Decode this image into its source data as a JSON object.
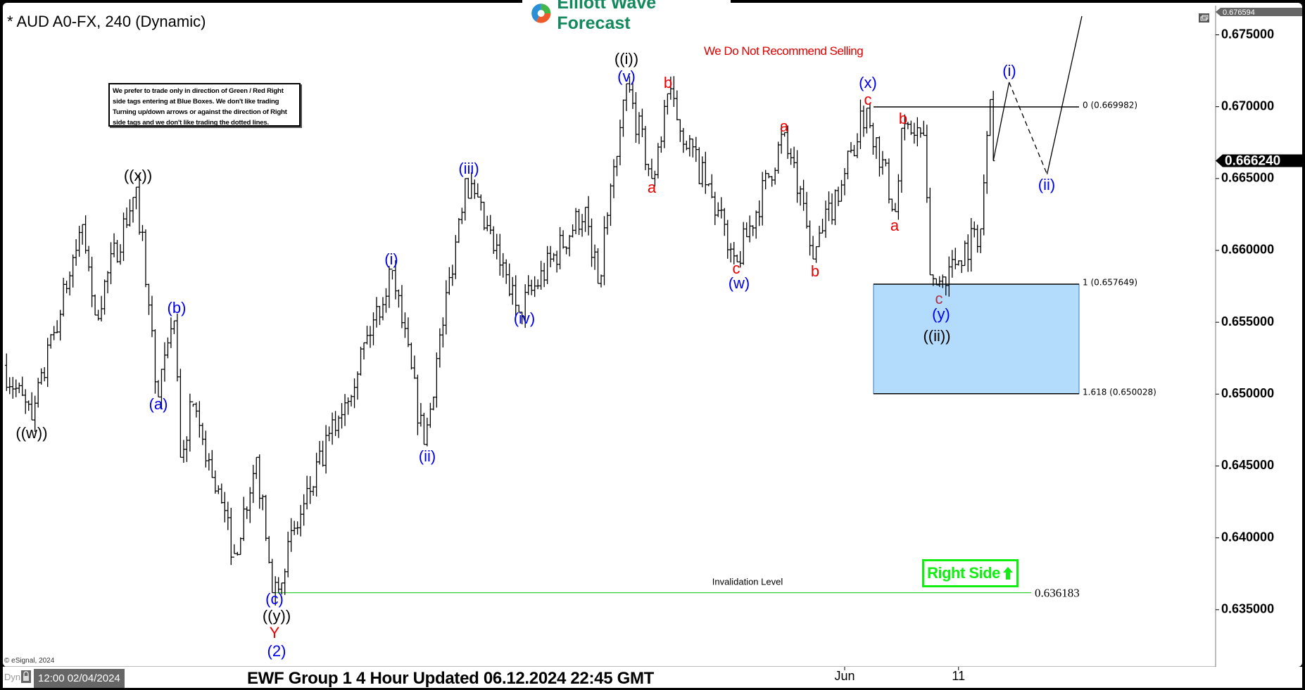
{
  "header": {
    "title": "* AUD A0-FX, 240 (Dynamic)",
    "logo_text": "Elliott Wave Forecast",
    "logo_icon": "ewf-swirl-logo",
    "restore_icon": "window-restore-icon",
    "warning": "We Do Not Recommend Selling",
    "note": "We prefer to trade only in direction of Green / Red Right side tags entering at Blue Boxes. We don't like trading Turning up/down arrows or against the direction of Right side tags and we don't like trading the dotted lines."
  },
  "chart_data": {
    "type": "ohlc",
    "symbol": "AUD A0-FX",
    "interval": "240",
    "ylim": [
      0.631,
      0.6766
    ],
    "y_ticks": [
      "0.675000",
      "0.670000",
      "0.665000",
      "0.660000",
      "0.655000",
      "0.650000",
      "0.645000",
      "0.640000",
      "0.635000"
    ],
    "x_ticks": [
      {
        "label": "Jun",
        "date": "2024-06-03 00:00"
      },
      {
        "label": "11",
        "date": "2024-06-11 00:00"
      }
    ],
    "grid": false,
    "top_price": "0.676594",
    "current_price": "0.666240",
    "price_path": [
      {
        "date": "2024-04-01 16:00",
        "price": 0.652
      },
      {
        "date": "2024-04-03 04:00",
        "price": 0.6482
      },
      {
        "date": "2024-04-05 20:00",
        "price": 0.6618
      },
      {
        "date": "2024-04-08 12:00",
        "price": 0.6555
      },
      {
        "date": "2024-04-10 16:00",
        "price": 0.6644
      },
      {
        "date": "2024-04-11 20:00",
        "price": 0.6498
      },
      {
        "date": "2024-04-12 16:00",
        "price": 0.6551
      },
      {
        "date": "2024-04-15 00:00",
        "price": 0.6456
      },
      {
        "date": "2024-04-15 16:00",
        "price": 0.6493
      },
      {
        "date": "2024-04-17 20:00",
        "price": 0.6389
      },
      {
        "date": "2024-04-19 00:00",
        "price": 0.6456
      },
      {
        "date": "2024-04-19 20:00",
        "price": 0.636183
      },
      {
        "date": "2024-04-30 04:00",
        "price": 0.6586
      },
      {
        "date": "2024-05-01 20:00",
        "price": 0.6465
      },
      {
        "date": "2024-05-06 00:00",
        "price": 0.665
      },
      {
        "date": "2024-05-08 20:00",
        "price": 0.6557
      },
      {
        "date": "2024-05-14 08:00",
        "price": 0.663
      },
      {
        "date": "2024-05-15 00:00",
        "price": 0.6577
      },
      {
        "date": "2024-05-16 12:00",
        "price": 0.6716
      },
      {
        "date": "2024-05-17 20:00",
        "price": 0.665
      },
      {
        "date": "2024-05-20 16:00",
        "price": 0.6709
      },
      {
        "date": "2024-05-24 08:00",
        "price": 0.6592
      },
      {
        "date": "2024-05-28 20:00",
        "price": 0.6682
      },
      {
        "date": "2024-05-30 08:00",
        "price": 0.6594
      },
      {
        "date": "2024-06-04 04:00",
        "price": 0.6699
      },
      {
        "date": "2024-06-05 16:00",
        "price": 0.6627
      },
      {
        "date": "2024-06-06 00:00",
        "price": 0.6685
      },
      {
        "date": "2024-06-07 04:00",
        "price": 0.668
      },
      {
        "date": "2024-06-07 12:00",
        "price": 0.6583
      },
      {
        "date": "2024-06-07 20:00",
        "price": 0.6576
      },
      {
        "date": "2024-06-12 04:00",
        "price": 0.6615
      },
      {
        "date": "2024-06-12 16:00",
        "price": 0.6705
      },
      {
        "date": "2024-06-12 20:00",
        "price": 0.66624
      }
    ],
    "projection": [
      {
        "date": "2024-06-12 20:00",
        "price": 0.66624,
        "style": "solid"
      },
      {
        "date": "2024-06-13 16:00",
        "price": 0.6717,
        "style": "dashed"
      },
      {
        "date": "2024-06-17 16:00",
        "price": 0.6653,
        "style": "solid"
      },
      {
        "date": "2024-06-19 12:00",
        "price": 0.6763
      }
    ],
    "fib_levels": [
      {
        "label": "0 (0.669982)",
        "value": 0.669982
      },
      {
        "label": "1 (0.657649)",
        "value": 0.657649
      },
      {
        "label": "1.618 (0.650028)",
        "value": 0.650028
      }
    ],
    "blue_box": {
      "from": 0.657649,
      "to": 0.650028,
      "color": "#b3dcfc"
    },
    "invalidation": {
      "label": "Invalidation Level",
      "value": 0.636183,
      "value_text": "0.636183",
      "color": "#33cc33"
    },
    "colors": {
      "black": "#000000",
      "blue": "#0000ee",
      "red": "#ee0000",
      "dark_red": "#b0304a",
      "green": "#11ee11"
    },
    "wave_labels": [
      {
        "text": "((w))",
        "color": "black"
      },
      {
        "text": "((x))",
        "color": "black"
      },
      {
        "text": "(a)",
        "color": "blue"
      },
      {
        "text": "(b)",
        "color": "blue"
      },
      {
        "text": "(c)",
        "color": "blue"
      },
      {
        "text": "((y))",
        "color": "black"
      },
      {
        "text": "Y",
        "color": "red"
      },
      {
        "text": "(2)",
        "color": "blue"
      },
      {
        "text": "(i)",
        "color": "blue"
      },
      {
        "text": "(ii)",
        "color": "blue"
      },
      {
        "text": "(iii)",
        "color": "blue"
      },
      {
        "text": "(iv)",
        "color": "blue"
      },
      {
        "text": "((i))",
        "color": "black"
      },
      {
        "text": "(v)",
        "color": "blue"
      },
      {
        "text": "b",
        "color": "red"
      },
      {
        "text": "a",
        "color": "red"
      },
      {
        "text": "c",
        "color": "red"
      },
      {
        "text": "(w)",
        "color": "blue"
      },
      {
        "text": "a",
        "color": "red"
      },
      {
        "text": "b",
        "color": "red"
      },
      {
        "text": "(x)",
        "color": "blue"
      },
      {
        "text": "c",
        "color": "red"
      },
      {
        "text": "b",
        "color": "red"
      },
      {
        "text": "a",
        "color": "red"
      },
      {
        "text": "c",
        "color": "dark_red"
      },
      {
        "text": "(y)",
        "color": "blue"
      },
      {
        "text": "((ii))",
        "color": "black"
      },
      {
        "text": "(i)",
        "color": "blue"
      },
      {
        "text": "(ii)",
        "color": "blue"
      }
    ],
    "right_side": {
      "label": "Right Side",
      "icon": "arrow-up-icon",
      "direction": "up"
    }
  },
  "footer": {
    "dyn": "Dyn",
    "lock_icon": "lock-icon",
    "cursor_date": "12:00 02/04/2024",
    "copyright": "© eSignal, 2024",
    "title": "EWF Group 1 4 Hour Updated 06.12.2024 22:45 GMT"
  }
}
